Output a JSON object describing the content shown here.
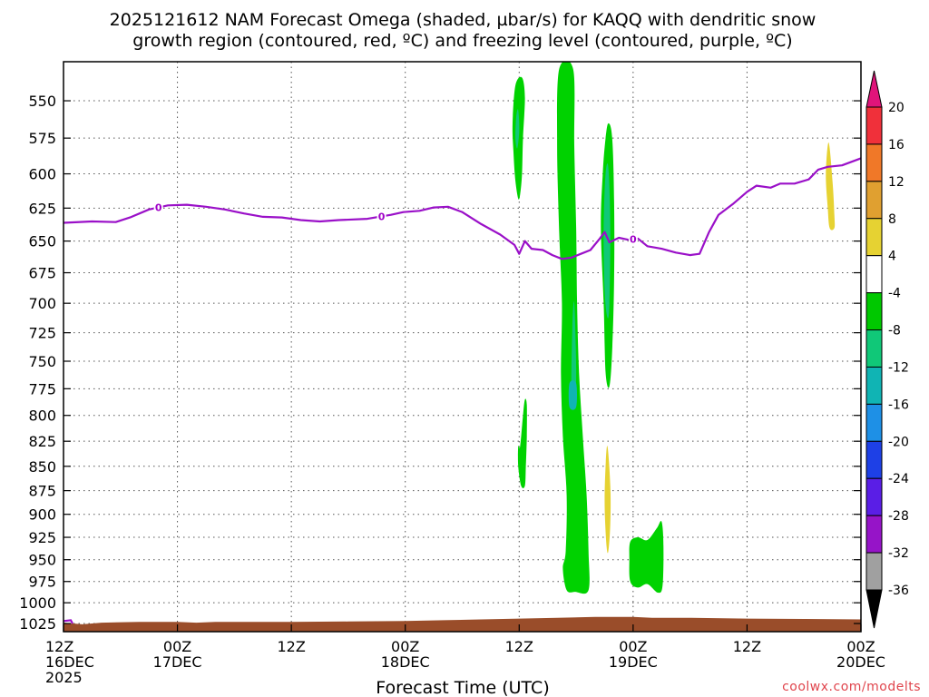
{
  "title_line1": "2025121612 NAM Forecast Omega (shaded, µbar/s) for KAQQ with dendritic snow",
  "title_line2": "growth region (contoured, red, ºC) and freezing level (contoured, purple, ºC)",
  "xlabel": "Forecast Time (UTC)",
  "credit": "coolwx.com/modelts",
  "chart_data": {
    "type": "heatmap",
    "x_ticks": [
      {
        "t": 0,
        "l1": "12Z",
        "l2": "16DEC",
        "l3": "2025"
      },
      {
        "t": 12,
        "l1": "00Z",
        "l2": "17DEC",
        "l3": ""
      },
      {
        "t": 24,
        "l1": "12Z",
        "l2": "",
        "l3": ""
      },
      {
        "t": 36,
        "l1": "00Z",
        "l2": "18DEC",
        "l3": ""
      },
      {
        "t": 48,
        "l1": "12Z",
        "l2": "",
        "l3": ""
      },
      {
        "t": 60,
        "l1": "00Z",
        "l2": "19DEC",
        "l3": ""
      },
      {
        "t": 72,
        "l1": "12Z",
        "l2": "",
        "l3": ""
      },
      {
        "t": 84,
        "l1": "00Z",
        "l2": "20DEC",
        "l3": ""
      }
    ],
    "xlim": [
      0,
      84
    ],
    "y_ticks": [
      550,
      575,
      600,
      625,
      650,
      675,
      700,
      725,
      750,
      775,
      800,
      825,
      850,
      875,
      900,
      925,
      950,
      975,
      1000,
      1025
    ],
    "ylim": [
      1035,
      525
    ],
    "y_scale": "log",
    "grid": true,
    "colorbar": {
      "labels": [
        "20",
        "16",
        "12",
        "8",
        "4",
        "-4",
        "-8",
        "-12",
        "-16",
        "-20",
        "-24",
        "-28",
        "-32",
        "-36"
      ],
      "colors": [
        "#e0147a",
        "#f0303a",
        "#f07828",
        "#e0a030",
        "#e6d232",
        "#ffffff",
        "#00c800",
        "#10c878",
        "#10b4b4",
        "#1e90e6",
        "#1e40e6",
        "#5a1ee6",
        "#9614c8",
        "#a0a0a0",
        "#000000"
      ]
    },
    "freezing_level": {
      "color": "#9a10c8",
      "label": "0",
      "label_times": [
        10,
        33.5,
        60
      ],
      "points": [
        [
          0,
          636
        ],
        [
          3,
          635
        ],
        [
          5.5,
          635.5
        ],
        [
          7,
          632
        ],
        [
          9,
          626
        ],
        [
          11,
          623
        ],
        [
          13,
          622.5
        ],
        [
          15,
          624
        ],
        [
          17,
          626
        ],
        [
          19,
          629
        ],
        [
          21,
          631.5
        ],
        [
          23,
          632
        ],
        [
          25,
          634
        ],
        [
          27,
          635
        ],
        [
          29,
          634
        ],
        [
          32,
          633
        ],
        [
          34.5,
          630
        ],
        [
          35.8,
          628
        ],
        [
          37.5,
          627
        ],
        [
          39,
          624.5
        ],
        [
          40.5,
          624
        ],
        [
          42,
          628
        ],
        [
          44,
          637
        ],
        [
          46,
          645
        ],
        [
          47.5,
          653
        ],
        [
          48,
          660
        ],
        [
          48.6,
          650
        ],
        [
          49.3,
          656
        ],
        [
          50.5,
          657
        ],
        [
          51.5,
          661
        ],
        [
          52.5,
          664
        ],
        [
          53.5,
          663
        ],
        [
          54.5,
          660
        ],
        [
          55.5,
          657
        ],
        [
          56.5,
          648
        ],
        [
          57,
          643
        ],
        [
          57.5,
          651
        ],
        [
          58.5,
          647.5
        ],
        [
          59.5,
          649
        ],
        [
          60.5,
          648
        ],
        [
          61.5,
          654
        ],
        [
          63,
          656
        ],
        [
          64.5,
          659
        ],
        [
          66,
          661
        ],
        [
          67,
          660
        ],
        [
          68,
          643
        ],
        [
          69,
          630
        ],
        [
          70.5,
          622
        ],
        [
          72,
          613
        ],
        [
          73,
          608.5
        ],
        [
          74.5,
          610
        ],
        [
          75.5,
          607
        ],
        [
          77,
          607
        ],
        [
          78.5,
          604
        ],
        [
          79.5,
          597
        ],
        [
          80.5,
          595
        ],
        [
          82,
          594
        ],
        [
          84,
          589
        ]
      ]
    },
    "omega_regions": [
      {
        "value": "-4 to -8",
        "color": "#00d200",
        "points": [
          [
            47.6,
            540
          ],
          [
            48.3,
            535
          ],
          [
            48.6,
            548
          ],
          [
            48.4,
            575
          ],
          [
            48.3,
            600
          ],
          [
            48.1,
            615
          ],
          [
            47.9,
            618
          ],
          [
            47.6,
            605
          ],
          [
            47.4,
            585
          ],
          [
            47.3,
            565
          ]
        ]
      },
      {
        "value": "-8 to -12",
        "color": "#10c878",
        "points": [
          [
            47.7,
            560
          ],
          [
            47.9,
            556
          ],
          [
            48.0,
            570
          ],
          [
            47.8,
            582
          ],
          [
            47.6,
            575
          ]
        ]
      },
      {
        "value": "-4 to -8",
        "color": "#00d200",
        "points": [
          [
            52.2,
            530
          ],
          [
            53.7,
            530
          ],
          [
            53.8,
            580
          ],
          [
            54.0,
            640
          ],
          [
            54.1,
            700
          ],
          [
            54.3,
            760
          ],
          [
            54.7,
            820
          ],
          [
            55.1,
            880
          ],
          [
            55.3,
            940
          ],
          [
            55.3,
            985
          ],
          [
            53.9,
            987
          ],
          [
            53.0,
            985
          ],
          [
            52.6,
            960
          ],
          [
            52.9,
            940
          ],
          [
            53.0,
            880
          ],
          [
            52.6,
            820
          ],
          [
            52.4,
            760
          ],
          [
            52.5,
            700
          ],
          [
            52.2,
            640
          ],
          [
            52.0,
            580
          ]
        ]
      },
      {
        "value": "-8 to -12",
        "color": "#10c878",
        "points": [
          [
            53.6,
            720
          ],
          [
            53.8,
            700
          ],
          [
            54.0,
            760
          ],
          [
            53.8,
            790
          ],
          [
            53.5,
            775
          ]
        ]
      },
      {
        "value": "-12 to -16",
        "color": "#10b4b4",
        "points": [
          [
            53.3,
            770
          ],
          [
            54.0,
            770
          ],
          [
            54.0,
            792
          ],
          [
            53.3,
            792
          ]
        ]
      },
      {
        "value": "-4 to -8",
        "color": "#00d200",
        "points": [
          [
            56.8,
            600
          ],
          [
            57.1,
            575
          ],
          [
            57.4,
            565
          ],
          [
            57.8,
            575
          ],
          [
            58.0,
            620
          ],
          [
            58.0,
            680
          ],
          [
            57.8,
            740
          ],
          [
            57.5,
            773
          ],
          [
            57.1,
            760
          ],
          [
            56.9,
            700
          ],
          [
            56.6,
            640
          ]
        ]
      },
      {
        "value": "-8 to -12",
        "color": "#10c878",
        "points": [
          [
            57.1,
            600
          ],
          [
            57.4,
            596
          ],
          [
            57.6,
            640
          ],
          [
            57.5,
            700
          ],
          [
            57.3,
            712
          ],
          [
            57.0,
            690
          ],
          [
            56.9,
            640
          ]
        ]
      },
      {
        "value": "-4 to -8",
        "color": "#00d200",
        "points": [
          [
            48.1,
            830
          ],
          [
            48.4,
            800
          ],
          [
            48.6,
            785
          ],
          [
            48.8,
            790
          ],
          [
            48.8,
            820
          ],
          [
            48.7,
            850
          ],
          [
            48.6,
            870
          ],
          [
            48.2,
            870
          ],
          [
            47.9,
            850
          ],
          [
            47.9,
            830
          ]
        ]
      },
      {
        "value": "-4 to -8",
        "color": "#00d200",
        "points": [
          [
            59.7,
            930
          ],
          [
            60.5,
            925
          ],
          [
            61.5,
            928
          ],
          [
            62.5,
            915
          ],
          [
            63,
            908
          ],
          [
            63.2,
            935
          ],
          [
            63.1,
            980
          ],
          [
            62.6,
            988
          ],
          [
            61.5,
            978
          ],
          [
            60.5,
            982
          ],
          [
            59.7,
            975
          ],
          [
            59.6,
            950
          ]
        ]
      },
      {
        "value": "4 to 8",
        "color": "#e6d232",
        "points": [
          [
            57.1,
            850
          ],
          [
            57.3,
            830
          ],
          [
            57.6,
            870
          ],
          [
            57.6,
            910
          ],
          [
            57.4,
            940
          ],
          [
            57.2,
            935
          ],
          [
            57.0,
            890
          ]
        ]
      },
      {
        "value": "4 to 8",
        "color": "#e6d232",
        "points": [
          [
            80.3,
            600
          ],
          [
            80.6,
            578
          ],
          [
            81.0,
            605
          ],
          [
            81.2,
            630
          ],
          [
            81.2,
            640
          ],
          [
            80.7,
            640
          ],
          [
            80.5,
            625
          ]
        ]
      }
    ],
    "terrain": {
      "color": "#9a4d2a",
      "surface": [
        [
          0,
          1024
        ],
        [
          2,
          1026
        ],
        [
          4,
          1024
        ],
        [
          8,
          1023
        ],
        [
          12,
          1023
        ],
        [
          14,
          1024
        ],
        [
          16,
          1023
        ],
        [
          20,
          1023
        ],
        [
          24,
          1023
        ],
        [
          30,
          1022.5
        ],
        [
          36,
          1022
        ],
        [
          40,
          1021
        ],
        [
          44,
          1020
        ],
        [
          48,
          1019
        ],
        [
          52,
          1018
        ],
        [
          56,
          1017
        ],
        [
          60,
          1017
        ],
        [
          62,
          1018
        ],
        [
          66,
          1018
        ],
        [
          72,
          1019
        ],
        [
          78,
          1019.5
        ],
        [
          84,
          1020
        ]
      ]
    }
  }
}
